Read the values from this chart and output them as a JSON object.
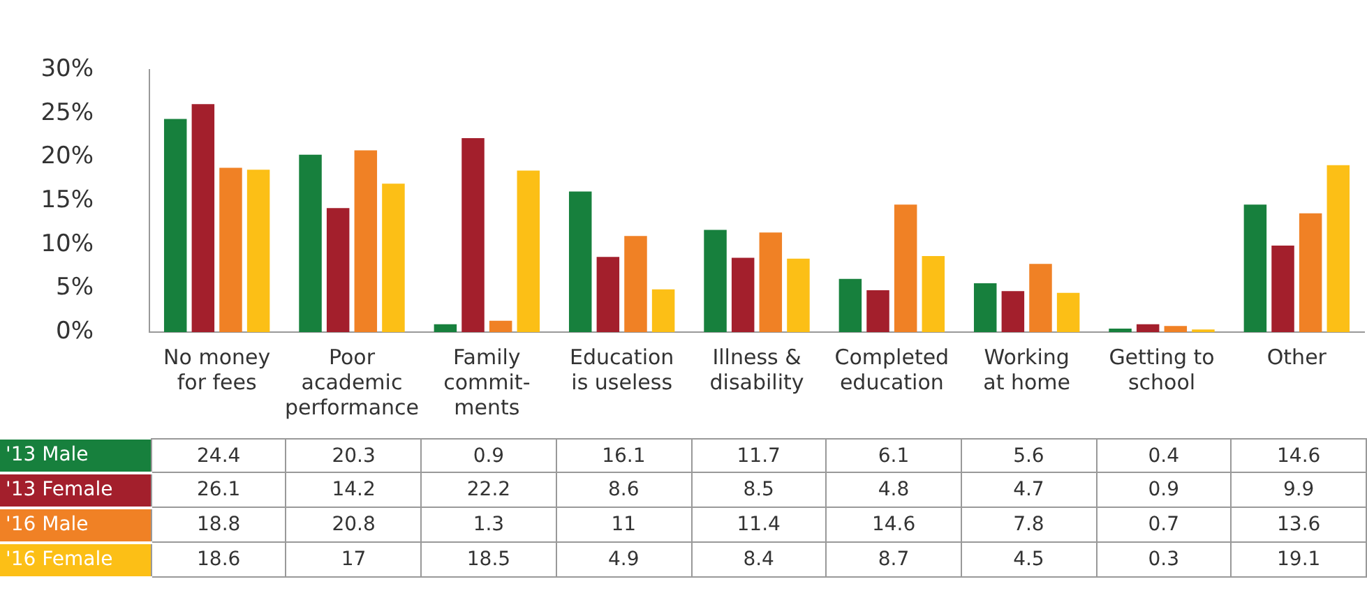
{
  "chart_data": {
    "type": "bar",
    "categories": [
      "No money\nfor fees",
      "Poor\nacademic\nperformance",
      "Family\ncommit-\nments",
      "Education\nis useless",
      "Illness &\ndisability",
      "Completed\neducation",
      "Working\nat home",
      "Getting to\nschool",
      "Other"
    ],
    "series": [
      {
        "name": "'13 Male",
        "color": "#17803d",
        "values": [
          24.4,
          20.3,
          0.9,
          16.1,
          11.7,
          6.1,
          5.6,
          0.4,
          14.6
        ]
      },
      {
        "name": "'13 Female",
        "color": "#a31f2c",
        "values": [
          26.1,
          14.2,
          22.2,
          8.6,
          8.5,
          4.8,
          4.7,
          0.9,
          9.9
        ]
      },
      {
        "name": "'16 Male",
        "color": "#f08125",
        "values": [
          18.8,
          20.8,
          1.3,
          11,
          11.4,
          14.6,
          7.8,
          0.7,
          13.6
        ]
      },
      {
        "name": "'16 Female",
        "color": "#fcbf16",
        "values": [
          18.6,
          17,
          18.5,
          4.9,
          8.4,
          8.7,
          4.5,
          0.3,
          19.1
        ]
      }
    ],
    "ylim": [
      0,
      30
    ],
    "yticks": [
      {
        "value": 0,
        "label": "0%"
      },
      {
        "value": 5,
        "label": "5%"
      },
      {
        "value": 10,
        "label": "10%"
      },
      {
        "value": 15,
        "label": "15%"
      },
      {
        "value": 20,
        "label": "20%"
      },
      {
        "value": 25,
        "label": "25%"
      },
      {
        "value": 30,
        "label": "30%"
      }
    ],
    "grid": false,
    "legend": "bottom",
    "data_labels": true
  }
}
